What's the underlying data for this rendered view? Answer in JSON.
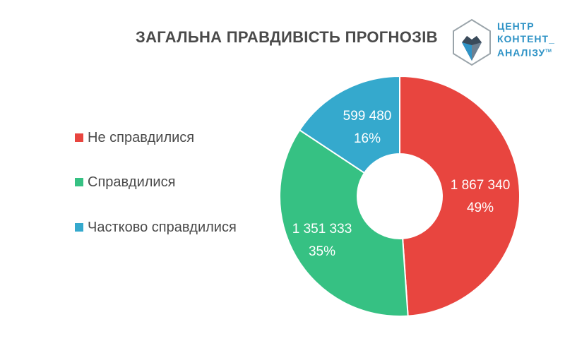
{
  "logo": {
    "line1": "ЦЕНТР",
    "line2": "КОНТЕНТ_",
    "line3": "АНАЛІЗУ",
    "tm": "TM",
    "color": "#2f93c6"
  },
  "chart_data": {
    "type": "pie",
    "title": "ЗАГАЛЬНА ПРАВДИВІСТЬ ПРОГНОЗІВ",
    "donut": true,
    "legend_position": "left",
    "slices": [
      {
        "name": "Не справдилися",
        "value": 1867340,
        "value_label": "1 867 340",
        "percent_label": "49%",
        "color": "#e8453f"
      },
      {
        "name": "Справдилися",
        "value": 1351333,
        "value_label": "1 351 333",
        "percent_label": "35%",
        "color": "#36c183"
      },
      {
        "name": "Частково справдилися",
        "value": 599480,
        "value_label": "599 480",
        "percent_label": "16%",
        "color": "#35a9cd"
      }
    ]
  }
}
